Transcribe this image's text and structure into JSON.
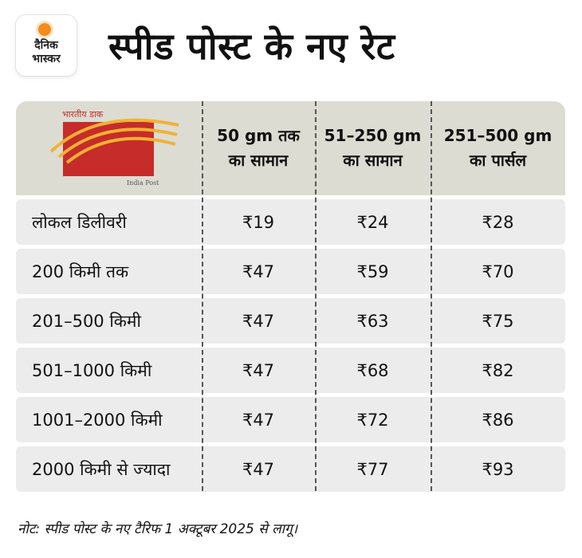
{
  "brand": {
    "line1": "दैनिक",
    "line2": "भास्कर",
    "colors": {
      "sun": "#f28c1c"
    }
  },
  "title": "स्पीड पोस्ट के नए रेट",
  "post_logo": {
    "top_text": "भारतीय डाक",
    "bottom_text": "India Post",
    "colors": {
      "box": "#c62c2a",
      "stripes": "#f2b233"
    }
  },
  "table": {
    "headers": [
      {
        "line1": "50 gm तक",
        "line2": "का सामान"
      },
      {
        "line1": "51–250 gm",
        "line2": "का सामान"
      },
      {
        "line1": "251–500 gm",
        "line2": "का पार्सल"
      }
    ],
    "rows": [
      {
        "label": "लोकल डिलीवरी",
        "v1": "₹19",
        "v2": "₹24",
        "v3": "₹28"
      },
      {
        "label": "200 किमी तक",
        "v1": "₹47",
        "v2": "₹59",
        "v3": "₹70"
      },
      {
        "label": "201–500 किमी",
        "v1": "₹47",
        "v2": "₹63",
        "v3": "₹75"
      },
      {
        "label": "501–1000 किमी",
        "v1": "₹47",
        "v2": "₹68",
        "v3": "₹82"
      },
      {
        "label": "1001–2000 किमी",
        "v1": "₹47",
        "v2": "₹72",
        "v3": "₹86"
      },
      {
        "label": "2000 किमी से ज्यादा",
        "v1": "₹47",
        "v2": "₹77",
        "v3": "₹93"
      }
    ]
  },
  "note": "नोट: स्पीड पोस्ट के नए टैरिफ 1 अक्टूबर 2025 से लागू।"
}
